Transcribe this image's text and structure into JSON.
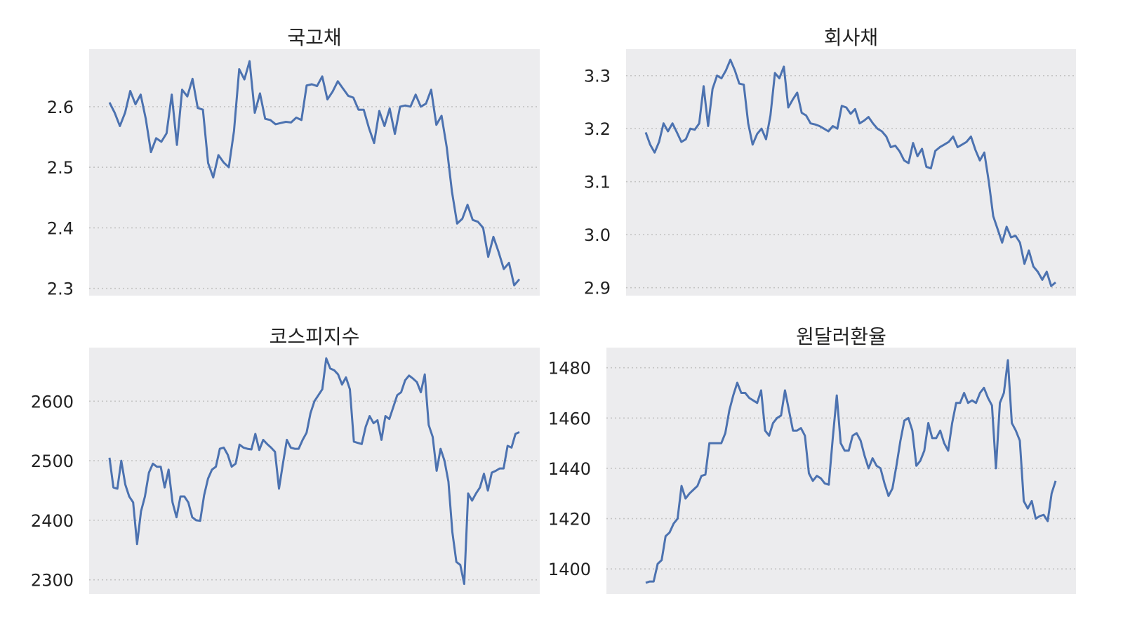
{
  "chart_data": [
    {
      "type": "line",
      "title": "국고채",
      "xlabel": "",
      "ylabel": "",
      "ylim": [
        2.288,
        2.695
      ],
      "yticks": [
        2.3,
        2.4,
        2.5,
        2.6
      ],
      "ytick_labels": [
        "2.3",
        "2.4",
        "2.5",
        "2.6"
      ],
      "grid": true,
      "line_color": "#4c72b0",
      "series": [
        {
          "values": [
            2.607,
            2.59,
            2.568,
            2.59,
            2.626,
            2.604,
            2.62,
            2.58,
            2.525,
            2.548,
            2.542,
            2.556,
            2.62,
            2.537,
            2.628,
            2.617,
            2.646,
            2.598,
            2.595,
            2.507,
            2.483,
            2.52,
            2.508,
            2.5,
            2.56,
            2.662,
            2.645,
            2.675,
            2.59,
            2.622,
            2.58,
            2.578,
            2.571,
            2.573,
            2.575,
            2.574,
            2.582,
            2.578,
            2.635,
            2.637,
            2.634,
            2.65,
            2.612,
            2.625,
            2.642,
            2.63,
            2.618,
            2.615,
            2.595,
            2.595,
            2.565,
            2.54,
            2.593,
            2.568,
            2.597,
            2.555,
            2.6,
            2.602,
            2.6,
            2.62,
            2.6,
            2.605,
            2.628,
            2.57,
            2.585,
            2.533,
            2.46,
            2.407,
            2.415,
            2.438,
            2.413,
            2.41,
            2.4,
            2.352,
            2.385,
            2.36,
            2.332,
            2.342,
            2.305,
            2.315
          ]
        }
      ]
    },
    {
      "type": "line",
      "title": "회사채",
      "xlabel": "",
      "ylabel": "",
      "ylim": [
        2.885,
        3.35
      ],
      "yticks": [
        2.9,
        3.0,
        3.1,
        3.2,
        3.3
      ],
      "ytick_labels": [
        "2.9",
        "3.0",
        "3.1",
        "3.2",
        "3.3"
      ],
      "grid": true,
      "line_color": "#4c72b0",
      "series": [
        {
          "values": [
            3.193,
            3.17,
            3.155,
            3.175,
            3.21,
            3.195,
            3.21,
            3.193,
            3.175,
            3.18,
            3.2,
            3.198,
            3.21,
            3.28,
            3.205,
            3.275,
            3.3,
            3.295,
            3.31,
            3.33,
            3.31,
            3.285,
            3.283,
            3.21,
            3.17,
            3.19,
            3.2,
            3.18,
            3.225,
            3.305,
            3.295,
            3.317,
            3.24,
            3.255,
            3.268,
            3.23,
            3.225,
            3.21,
            3.208,
            3.205,
            3.2,
            3.195,
            3.205,
            3.2,
            3.243,
            3.24,
            3.228,
            3.237,
            3.21,
            3.215,
            3.222,
            3.21,
            3.2,
            3.195,
            3.185,
            3.165,
            3.168,
            3.157,
            3.14,
            3.135,
            3.173,
            3.148,
            3.162,
            3.128,
            3.125,
            3.158,
            3.165,
            3.17,
            3.175,
            3.185,
            3.165,
            3.17,
            3.175,
            3.185,
            3.16,
            3.14,
            3.155,
            3.1,
            3.035,
            3.01,
            2.985,
            3.015,
            2.995,
            2.998,
            2.985,
            2.945,
            2.97,
            2.94,
            2.93,
            2.915,
            2.93,
            2.903,
            2.91
          ]
        }
      ]
    },
    {
      "type": "line",
      "title": "코스피지수",
      "xlabel": "",
      "ylabel": "",
      "ylim": [
        2276,
        2690
      ],
      "yticks": [
        2300,
        2400,
        2500,
        2600
      ],
      "ytick_labels": [
        "2300",
        "2400",
        "2500",
        "2600"
      ],
      "grid": true,
      "line_color": "#4c72b0",
      "series": [
        {
          "values": [
            2505,
            2455,
            2453,
            2500,
            2460,
            2440,
            2430,
            2360,
            2415,
            2440,
            2480,
            2495,
            2490,
            2490,
            2455,
            2485,
            2430,
            2405,
            2440,
            2440,
            2430,
            2405,
            2400,
            2399,
            2442,
            2470,
            2485,
            2490,
            2520,
            2522,
            2510,
            2490,
            2495,
            2527,
            2522,
            2520,
            2519,
            2545,
            2518,
            2535,
            2528,
            2522,
            2515,
            2453,
            2495,
            2535,
            2522,
            2520,
            2520,
            2535,
            2547,
            2580,
            2600,
            2610,
            2620,
            2672,
            2655,
            2652,
            2645,
            2628,
            2640,
            2620,
            2532,
            2530,
            2528,
            2557,
            2575,
            2563,
            2568,
            2535,
            2575,
            2570,
            2590,
            2610,
            2615,
            2635,
            2643,
            2638,
            2632,
            2615,
            2645,
            2560,
            2540,
            2483,
            2520,
            2500,
            2465,
            2380,
            2330,
            2325,
            2293,
            2445,
            2433,
            2445,
            2455,
            2478,
            2450,
            2480,
            2483,
            2487,
            2487,
            2525,
            2522,
            2545,
            2548
          ]
        }
      ]
    },
    {
      "type": "line",
      "title": "원달러환율",
      "xlabel": "",
      "ylabel": "",
      "ylim": [
        1390,
        1488
      ],
      "yticks": [
        1400,
        1420,
        1440,
        1460,
        1480
      ],
      "ytick_labels": [
        "1400",
        "1420",
        "1440",
        "1460",
        "1480"
      ],
      "grid": true,
      "line_color": "#4c72b0",
      "series": [
        {
          "values": [
            1394.5,
            1395,
            1395,
            1402,
            1403.5,
            1413,
            1414.5,
            1418,
            1420,
            1433,
            1428,
            1430,
            1431.5,
            1433,
            1437,
            1437.5,
            1450,
            1450,
            1450,
            1450,
            1454,
            1463,
            1469,
            1474,
            1470,
            1470,
            1468,
            1467,
            1466,
            1471,
            1455,
            1453,
            1458,
            1460,
            1461,
            1471,
            1463,
            1455,
            1455,
            1456,
            1453,
            1438,
            1435,
            1437,
            1436,
            1434,
            1433.5,
            1452,
            1469,
            1450,
            1447,
            1447,
            1453,
            1454,
            1451,
            1445,
            1440,
            1444,
            1441,
            1440,
            1434,
            1429,
            1432,
            1441,
            1451,
            1459,
            1460,
            1455,
            1441,
            1443,
            1447,
            1458,
            1452,
            1452,
            1455,
            1450,
            1447,
            1458,
            1466,
            1466,
            1470,
            1466,
            1467,
            1466,
            1470,
            1472,
            1468,
            1465,
            1440,
            1466,
            1470,
            1483,
            1458,
            1455,
            1451,
            1427,
            1424,
            1427,
            1420,
            1421,
            1421.5,
            1419,
            1430,
            1435
          ]
        }
      ]
    }
  ]
}
